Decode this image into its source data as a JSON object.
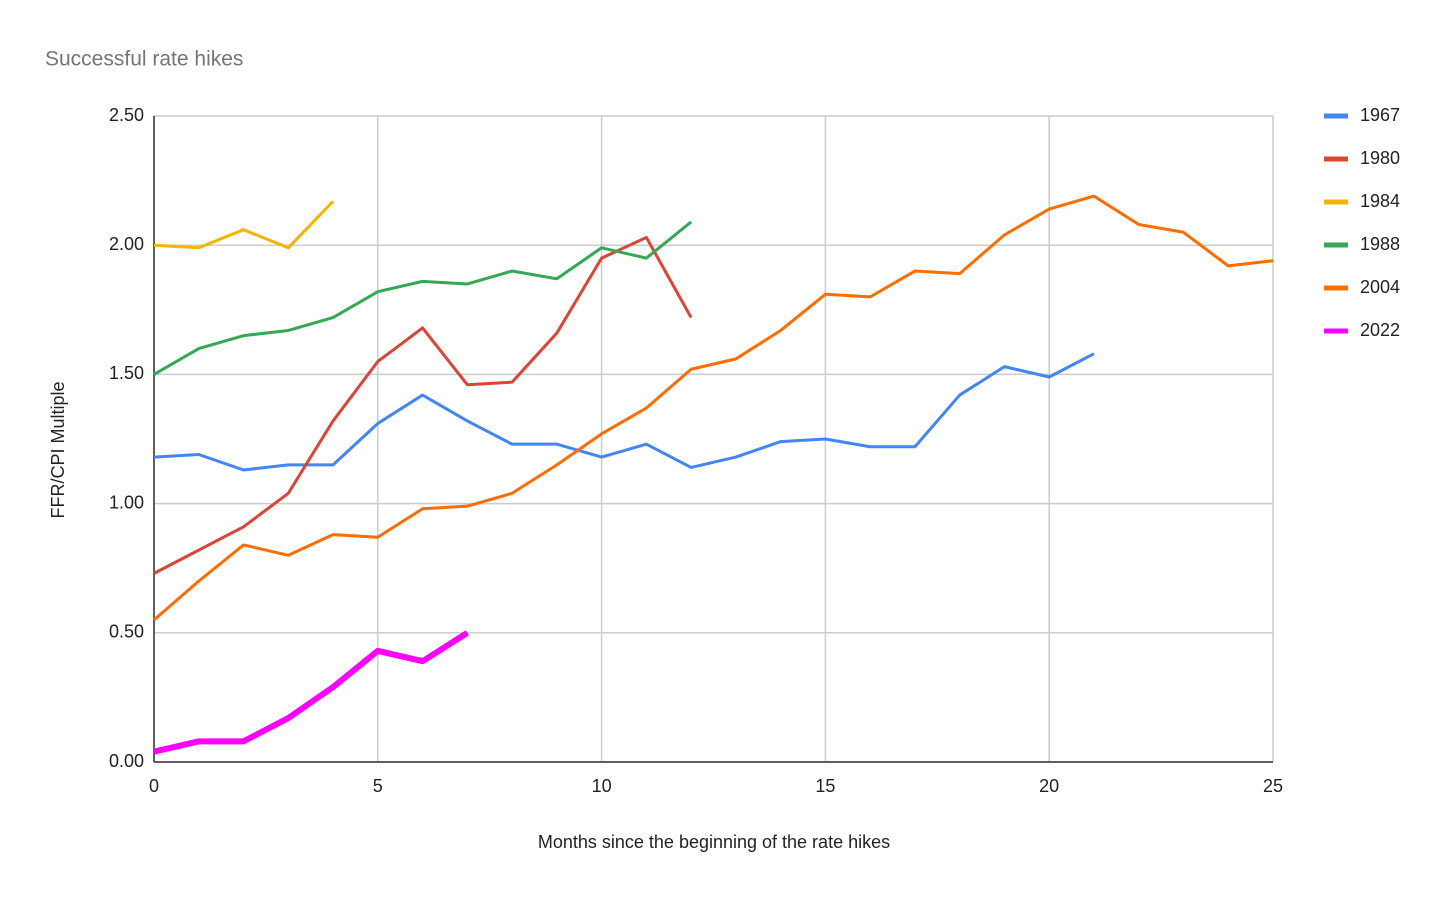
{
  "chart_data": {
    "type": "line",
    "title": "Successful rate hikes",
    "x_label": "Months since the beginning of the rate hikes",
    "y_label": "FFR/CPI Multiple",
    "x": [
      0,
      1,
      2,
      3,
      4,
      5,
      6,
      7,
      8,
      9,
      10,
      11,
      12,
      13,
      14,
      15,
      16,
      17,
      18,
      19,
      20,
      21,
      22,
      23,
      24,
      25
    ],
    "series": [
      {
        "name": "1967",
        "color": "#4285f4",
        "line_width": 3,
        "values": [
          1.18,
          1.19,
          1.13,
          1.15,
          1.15,
          1.31,
          1.42,
          1.32,
          1.23,
          1.23,
          1.18,
          1.23,
          1.14,
          1.18,
          1.24,
          1.25,
          1.22,
          1.22,
          1.42,
          1.53,
          1.49,
          1.58,
          null,
          null,
          null,
          null
        ]
      },
      {
        "name": "1980",
        "color": "#db4437",
        "line_width": 3,
        "values": [
          0.73,
          0.82,
          0.91,
          1.04,
          1.32,
          1.55,
          1.68,
          1.46,
          1.47,
          1.66,
          1.95,
          2.03,
          1.72,
          null,
          null,
          null,
          null,
          null,
          null,
          null,
          null,
          null,
          null,
          null,
          null,
          null
        ]
      },
      {
        "name": "1984",
        "color": "#f4b400",
        "line_width": 3,
        "values": [
          2.0,
          1.99,
          2.06,
          1.99,
          2.17,
          null,
          null,
          null,
          null,
          null,
          null,
          null,
          null,
          null,
          null,
          null,
          null,
          null,
          null,
          null,
          null,
          null,
          null,
          null,
          null,
          null
        ]
      },
      {
        "name": "1988",
        "color": "#34a853",
        "line_width": 3,
        "values": [
          1.5,
          1.6,
          1.65,
          1.67,
          1.72,
          1.82,
          1.86,
          1.85,
          1.9,
          1.87,
          1.99,
          1.95,
          2.09,
          null,
          null,
          null,
          null,
          null,
          null,
          null,
          null,
          null,
          null,
          null,
          null,
          null
        ]
      },
      {
        "name": "2004",
        "color": "#ff6d01",
        "line_width": 3,
        "values": [
          0.55,
          0.7,
          0.84,
          0.8,
          0.88,
          0.87,
          0.98,
          0.99,
          1.04,
          1.15,
          1.27,
          1.37,
          1.52,
          1.56,
          1.67,
          1.81,
          1.8,
          1.9,
          1.89,
          2.04,
          2.14,
          2.19,
          2.08,
          2.05,
          1.92,
          1.94
        ]
      },
      {
        "name": "2022",
        "color": "#ff00ff",
        "line_width": 6,
        "values": [
          0.04,
          0.08,
          0.08,
          0.17,
          0.29,
          0.43,
          0.39,
          0.5,
          null,
          null,
          null,
          null,
          null,
          null,
          null,
          null,
          null,
          null,
          null,
          null,
          null,
          null,
          null,
          null,
          null,
          null
        ]
      }
    ],
    "xlim": [
      0,
      25
    ],
    "xticks": [
      0,
      5,
      10,
      15,
      20,
      25
    ],
    "ylim": [
      0,
      2.5
    ],
    "yticks": [
      {
        "value": 0,
        "label": "0.00"
      },
      {
        "value": 0.5,
        "label": "0.50"
      },
      {
        "value": 1,
        "label": "1.00"
      },
      {
        "value": 1.5,
        "label": "1.50"
      },
      {
        "value": 2,
        "label": "2.00"
      },
      {
        "value": 2.5,
        "label": "2.50"
      }
    ],
    "grid": true,
    "legend": "right"
  }
}
